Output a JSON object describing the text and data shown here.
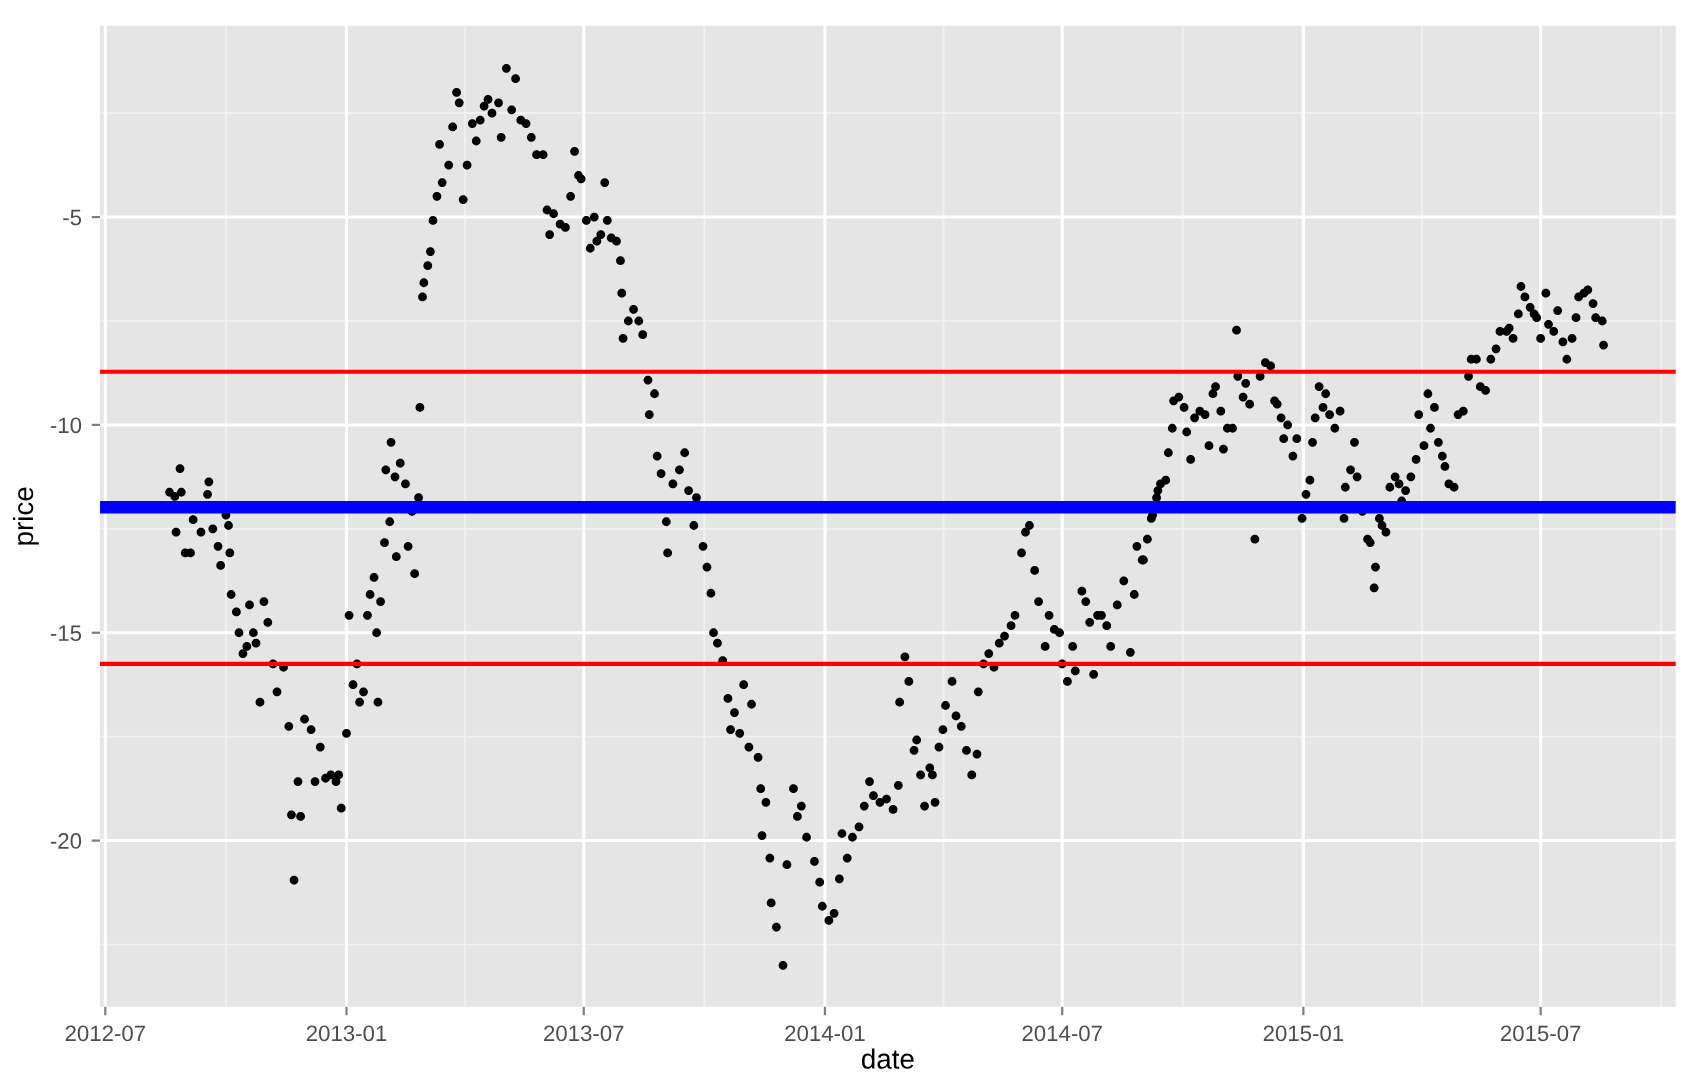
{
  "chart_data": {
    "type": "scatter",
    "xlabel": "date",
    "ylabel": "price",
    "marker": "circle",
    "grid": true,
    "xlim": [
      "2012-06-27",
      "2015-10-12"
    ],
    "xticks": [
      {
        "value": "2012-07-01",
        "label": "2012-07"
      },
      {
        "value": "2013-01-01",
        "label": "2013-01"
      },
      {
        "value": "2013-07-01",
        "label": "2013-07"
      },
      {
        "value": "2014-01-01",
        "label": "2014-01"
      },
      {
        "value": "2014-07-01",
        "label": "2014-07"
      },
      {
        "value": "2015-01-01",
        "label": "2015-01"
      },
      {
        "value": "2015-07-01",
        "label": "2015-07"
      }
    ],
    "ylim": [
      -24.0,
      -0.4
    ],
    "yticks": [
      -20,
      -15,
      -10,
      -5
    ],
    "ref_lines": [
      {
        "axis": "y",
        "value": -11.98,
        "label": null,
        "color": "#0000ff"
      },
      {
        "axis": "y",
        "value": -8.72,
        "label": null,
        "color": "#ff0000"
      },
      {
        "axis": "y",
        "value": -15.75,
        "label": null,
        "color": "#ff0000"
      }
    ],
    "series": [
      {
        "color": "#000000",
        "x": [
          "2012-08-19",
          "2012-08-23",
          "2012-08-24",
          "2012-08-27",
          "2012-08-28",
          "2012-08-31",
          "2012-09-04",
          "2012-09-06",
          "2012-09-12",
          "2012-09-17",
          "2012-09-18",
          "2012-09-21",
          "2012-09-25",
          "2012-09-27",
          "2012-10-01",
          "2012-10-03",
          "2012-10-04",
          "2012-10-05",
          "2012-10-09",
          "2012-10-11",
          "2012-10-14",
          "2012-10-17",
          "2012-10-19",
          "2012-10-22",
          "2012-10-24",
          "2012-10-27",
          "2012-10-30",
          "2012-11-02",
          "2012-11-06",
          "2012-11-09",
          "2012-11-14",
          "2012-11-18",
          "2012-11-20",
          "2012-11-22",
          "2012-11-25",
          "2012-11-27",
          "2012-11-30",
          "2012-12-05",
          "2012-12-08",
          "2012-12-12",
          "2012-12-16",
          "2012-12-20",
          "2012-12-24",
          "2012-12-26",
          "2012-12-28",
          "2013-01-01",
          "2013-01-03",
          "2013-01-06",
          "2013-01-09",
          "2013-01-11",
          "2013-01-14",
          "2013-01-17",
          "2013-01-19",
          "2013-01-22",
          "2013-01-24",
          "2013-01-25",
          "2013-01-27",
          "2013-01-30",
          "2013-01-31",
          "2013-02-03",
          "2013-02-04",
          "2013-02-07",
          "2013-02-08",
          "2013-02-11",
          "2013-02-15",
          "2013-02-17",
          "2013-02-20",
          "2013-02-22",
          "2013-02-25",
          "2013-02-26",
          "2013-02-28",
          "2013-03-01",
          "2013-03-04",
          "2013-03-06",
          "2013-03-08",
          "2013-03-11",
          "2013-03-13",
          "2013-03-15",
          "2013-03-20",
          "2013-03-23",
          "2013-03-26",
          "2013-03-28",
          "2013-03-31",
          "2013-04-03",
          "2013-04-07",
          "2013-04-10",
          "2013-04-13",
          "2013-04-16",
          "2013-04-19",
          "2013-04-22",
          "2013-04-27",
          "2013-04-29",
          "2013-05-03",
          "2013-05-07",
          "2013-05-10",
          "2013-05-14",
          "2013-05-18",
          "2013-05-22",
          "2013-05-26",
          "2013-05-31",
          "2013-06-03",
          "2013-06-05",
          "2013-06-08",
          "2013-06-13",
          "2013-06-17",
          "2013-06-21",
          "2013-06-24",
          "2013-06-27",
          "2013-06-29",
          "2013-07-03",
          "2013-07-06",
          "2013-07-09",
          "2013-07-11",
          "2013-07-14",
          "2013-07-17",
          "2013-07-19",
          "2013-07-22",
          "2013-07-26",
          "2013-07-29",
          "2013-07-30",
          "2013-07-31",
          "2013-08-04",
          "2013-08-08",
          "2013-08-12",
          "2013-08-15",
          "2013-08-19",
          "2013-08-20",
          "2013-08-24",
          "2013-08-26",
          "2013-08-29",
          "2013-09-02",
          "2013-09-03",
          "2013-09-07",
          "2013-09-12",
          "2013-09-16",
          "2013-09-19",
          "2013-09-23",
          "2013-09-25",
          "2013-09-30",
          "2013-10-03",
          "2013-10-06",
          "2013-10-08",
          "2013-10-11",
          "2013-10-15",
          "2013-10-19",
          "2013-10-21",
          "2013-10-24",
          "2013-10-28",
          "2013-10-31",
          "2013-11-04",
          "2013-11-06",
          "2013-11-11",
          "2013-11-13",
          "2013-11-14",
          "2013-11-17",
          "2013-11-20",
          "2013-11-21",
          "2013-11-25",
          "2013-11-30",
          "2013-12-03",
          "2013-12-08",
          "2013-12-11",
          "2013-12-14",
          "2013-12-18",
          "2013-12-24",
          "2013-12-28",
          "2013-12-30",
          "2014-01-04",
          "2014-01-08",
          "2014-01-12",
          "2014-01-14",
          "2014-01-18",
          "2014-01-22",
          "2014-01-27",
          "2014-01-31",
          "2014-02-04",
          "2014-02-07",
          "2014-02-12",
          "2014-02-17",
          "2014-02-22",
          "2014-02-26",
          "2014-02-27",
          "2014-03-03",
          "2014-03-06",
          "2014-03-10",
          "2014-03-12",
          "2014-03-15",
          "2014-03-18",
          "2014-03-22",
          "2014-03-24",
          "2014-03-26",
          "2014-03-29",
          "2014-04-01",
          "2014-04-03",
          "2014-04-08",
          "2014-04-11",
          "2014-04-15",
          "2014-04-19",
          "2014-04-23",
          "2014-04-27",
          "2014-04-28",
          "2014-05-02",
          "2014-05-06",
          "2014-05-10",
          "2014-05-14",
          "2014-05-18",
          "2014-05-23",
          "2014-05-26",
          "2014-05-31",
          "2014-06-03",
          "2014-06-06",
          "2014-06-10",
          "2014-06-13",
          "2014-06-18",
          "2014-06-21",
          "2014-06-25",
          "2014-06-29",
          "2014-07-01",
          "2014-07-05",
          "2014-07-09",
          "2014-07-11",
          "2014-07-16",
          "2014-07-19",
          "2014-07-22",
          "2014-07-25",
          "2014-07-28",
          "2014-07-31",
          "2014-08-04",
          "2014-08-07",
          "2014-08-12",
          "2014-08-17",
          "2014-08-22",
          "2014-08-25",
          "2014-08-27",
          "2014-08-31",
          "2014-09-01",
          "2014-09-04",
          "2014-09-07",
          "2014-09-08",
          "2014-09-11",
          "2014-09-12",
          "2014-09-14",
          "2014-09-18",
          "2014-09-20",
          "2014-09-23",
          "2014-09-24",
          "2014-09-28",
          "2014-10-02",
          "2014-10-04",
          "2014-10-07",
          "2014-10-10",
          "2014-10-14",
          "2014-10-18",
          "2014-10-21",
          "2014-10-24",
          "2014-10-26",
          "2014-10-30",
          "2014-11-01",
          "2014-11-04",
          "2014-11-08",
          "2014-11-11",
          "2014-11-12",
          "2014-11-16",
          "2014-11-18",
          "2014-11-21",
          "2014-11-25",
          "2014-11-29",
          "2014-12-03",
          "2014-12-07",
          "2014-12-10",
          "2014-12-12",
          "2014-12-15",
          "2014-12-17",
          "2014-12-20",
          "2014-12-24",
          "2014-12-27",
          "2014-12-31",
          "2015-01-03",
          "2015-01-06",
          "2015-01-08",
          "2015-01-10",
          "2015-01-13",
          "2015-01-16",
          "2015-01-18",
          "2015-01-21",
          "2015-01-25",
          "2015-01-29",
          "2015-02-01",
          "2015-02-02",
          "2015-02-06",
          "2015-02-09",
          "2015-02-11",
          "2015-02-15",
          "2015-02-19",
          "2015-02-21",
          "2015-02-24",
          "2015-02-25",
          "2015-02-28",
          "2015-03-02",
          "2015-03-05",
          "2015-03-08",
          "2015-03-12",
          "2015-03-15",
          "2015-03-17",
          "2015-03-20",
          "2015-03-24",
          "2015-03-28",
          "2015-03-30",
          "2015-04-03",
          "2015-04-06",
          "2015-04-08",
          "2015-04-11",
          "2015-04-14",
          "2015-04-17",
          "2015-04-19",
          "2015-04-22",
          "2015-04-26",
          "2015-04-29",
          "2015-05-03",
          "2015-05-07",
          "2015-05-09",
          "2015-05-13",
          "2015-05-16",
          "2015-05-20",
          "2015-05-24",
          "2015-05-28",
          "2015-05-31",
          "2015-06-05",
          "2015-06-07",
          "2015-06-10",
          "2015-06-14",
          "2015-06-16",
          "2015-06-19",
          "2015-06-23",
          "2015-06-26",
          "2015-06-28",
          "2015-07-01",
          "2015-07-05",
          "2015-07-07",
          "2015-07-11",
          "2015-07-14",
          "2015-07-18",
          "2015-07-21",
          "2015-07-25",
          "2015-07-28",
          "2015-07-30",
          "2015-08-03",
          "2015-08-06",
          "2015-08-10",
          "2015-08-12",
          "2015-08-17",
          "2015-08-18"
        ],
        "values": [
          -11.62,
          -11.72,
          -12.58,
          -11.05,
          -11.62,
          -13.08,
          -13.08,
          -12.28,
          -12.58,
          -11.67,
          -11.37,
          -12.5,
          -12.92,
          -13.38,
          -12.17,
          -12.42,
          -13.08,
          -14.08,
          -14.5,
          -15.0,
          -15.5,
          -15.33,
          -14.33,
          -15.0,
          -15.25,
          -16.67,
          -14.25,
          -14.75,
          -15.75,
          -16.42,
          -15.83,
          -17.25,
          -19.38,
          -20.95,
          -18.58,
          -19.42,
          -17.08,
          -17.33,
          -18.58,
          -17.75,
          -18.5,
          -18.42,
          -18.58,
          -18.42,
          -19.22,
          -17.42,
          -14.58,
          -16.25,
          -15.75,
          -16.67,
          -16.42,
          -14.58,
          -14.08,
          -13.67,
          -15.0,
          -16.67,
          -14.25,
          -12.83,
          -11.08,
          -12.33,
          -10.42,
          -11.25,
          -13.17,
          -10.92,
          -11.42,
          -12.92,
          -12.08,
          -13.58,
          -11.75,
          -9.58,
          -6.92,
          -6.58,
          -6.17,
          -5.83,
          -5.08,
          -4.5,
          -3.25,
          -4.17,
          -3.75,
          -2.83,
          -2.0,
          -2.25,
          -4.58,
          -3.75,
          -2.75,
          -3.17,
          -2.67,
          -2.33,
          -2.17,
          -2.5,
          -2.25,
          -3.08,
          -1.42,
          -2.42,
          -1.67,
          -2.67,
          -2.75,
          -3.08,
          -3.5,
          -3.5,
          -4.83,
          -5.42,
          -4.92,
          -5.17,
          -5.25,
          -4.5,
          -3.42,
          -4.0,
          -4.08,
          -5.08,
          -5.75,
          -5.0,
          -5.58,
          -5.42,
          -4.17,
          -5.08,
          -5.5,
          -5.58,
          -6.05,
          -6.83,
          -7.92,
          -7.5,
          -7.22,
          -7.5,
          -7.83,
          -8.92,
          -9.75,
          -9.25,
          -10.75,
          -11.17,
          -12.33,
          -13.08,
          -11.42,
          -11.08,
          -10.67,
          -11.58,
          -12.42,
          -11.75,
          -12.92,
          -13.42,
          -14.05,
          -15.0,
          -15.25,
          -15.67,
          -16.58,
          -17.33,
          -16.92,
          -17.42,
          -16.25,
          -17.75,
          -16.72,
          -18.0,
          -18.75,
          -19.88,
          -19.08,
          -20.42,
          -21.5,
          -22.08,
          -23.0,
          -20.58,
          -18.75,
          -19.42,
          -19.17,
          -19.92,
          -20.5,
          -21.0,
          -21.58,
          -21.92,
          -21.75,
          -20.92,
          -19.83,
          -20.42,
          -19.92,
          -19.67,
          -19.17,
          -18.58,
          -18.92,
          -19.08,
          -19.0,
          -19.25,
          -18.67,
          -16.67,
          -15.58,
          -16.17,
          -17.83,
          -17.58,
          -18.42,
          -19.17,
          -18.25,
          -18.42,
          -19.08,
          -17.75,
          -17.33,
          -16.75,
          -16.17,
          -17.0,
          -17.25,
          -17.83,
          -18.42,
          -17.92,
          -16.42,
          -15.75,
          -15.5,
          -15.83,
          -15.25,
          -15.08,
          -14.83,
          -14.58,
          -13.08,
          -12.58,
          -12.42,
          -13.5,
          -14.25,
          -15.33,
          -14.58,
          -14.92,
          -15.0,
          -15.75,
          -16.17,
          -15.33,
          -15.92,
          -14.0,
          -14.25,
          -14.75,
          -16.0,
          -14.58,
          -14.58,
          -14.83,
          -15.33,
          -14.33,
          -13.75,
          -15.47,
          -14.08,
          -12.92,
          -13.25,
          -13.25,
          -12.75,
          -12.25,
          -12.17,
          -11.75,
          -11.58,
          -11.42,
          -11.33,
          -10.67,
          -10.08,
          -9.42,
          -9.33,
          -9.58,
          -10.17,
          -10.83,
          -9.83,
          -9.67,
          -9.75,
          -10.5,
          -9.25,
          -9.08,
          -9.67,
          -10.58,
          -10.08,
          -10.08,
          -7.72,
          -8.83,
          -9.33,
          -9.0,
          -9.5,
          -12.75,
          -8.83,
          -8.5,
          -8.58,
          -9.42,
          -9.5,
          -9.83,
          -10.33,
          -10.0,
          -10.75,
          -10.33,
          -12.25,
          -11.67,
          -11.33,
          -10.42,
          -9.83,
          -9.08,
          -9.58,
          -9.25,
          -9.75,
          -10.08,
          -9.67,
          -12.25,
          -11.5,
          -11.08,
          -10.42,
          -11.25,
          -12.08,
          -12.75,
          -12.83,
          -13.92,
          -13.42,
          -12.25,
          -12.42,
          -12.58,
          -11.5,
          -11.25,
          -11.42,
          -11.83,
          -11.58,
          -11.25,
          -10.83,
          -9.75,
          -10.5,
          -9.25,
          -10.08,
          -9.58,
          -10.42,
          -10.75,
          -11.0,
          -11.42,
          -11.5,
          -9.75,
          -9.67,
          -8.83,
          -8.42,
          -8.42,
          -9.08,
          -9.17,
          -8.42,
          -8.17,
          -7.75,
          -7.75,
          -7.67,
          -7.92,
          -7.33,
          -6.67,
          -6.92,
          -7.17,
          -7.33,
          -7.42,
          -7.92,
          -6.83,
          -7.58,
          -7.75,
          -7.25,
          -8.0,
          -8.42,
          -7.92,
          -7.42,
          -6.92,
          -6.83,
          -6.75,
          -7.08,
          -7.42,
          -7.5,
          -8.08
        ]
      }
    ]
  }
}
